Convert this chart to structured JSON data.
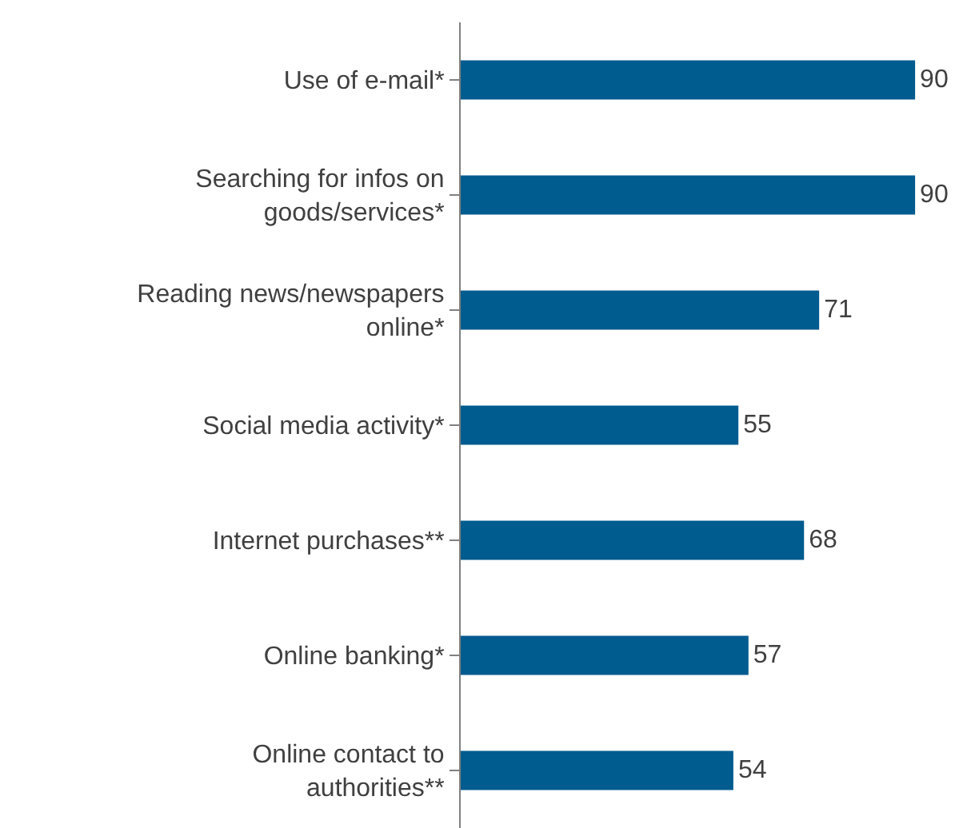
{
  "chart_data": {
    "type": "bar",
    "orientation": "horizontal",
    "categories": [
      "Use of e-mail*",
      "Searching for infos on\ngoods/services*",
      "Reading news/newspapers\nonline*",
      "Social media activity*",
      "Internet purchases**",
      "Online banking*",
      "Online contact to\nauthorities**"
    ],
    "values": [
      90,
      90,
      71,
      55,
      68,
      57,
      54
    ],
    "color": "#005b8e",
    "data_labels": true,
    "tick_labels": "y"
  }
}
